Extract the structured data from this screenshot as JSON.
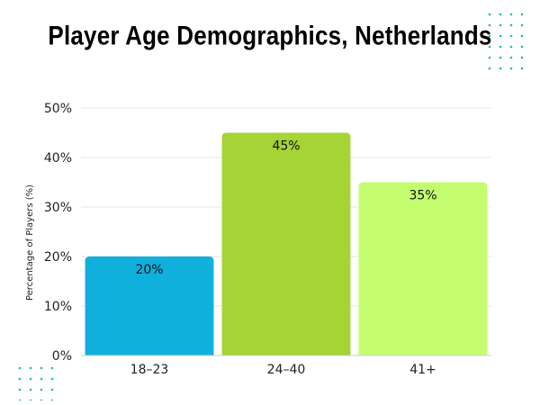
{
  "chart_data": {
    "type": "bar",
    "title": "Player Age Demographics, Netherlands",
    "xlabel": "",
    "ylabel": "Percentage of Players (%)",
    "categories": [
      "18–23",
      "24–40",
      "41+"
    ],
    "values": [
      20,
      45,
      35
    ],
    "data_labels": [
      "20%",
      "45%",
      "35%"
    ],
    "y_ticks": [
      "0%",
      "10%",
      "20%",
      "30%",
      "40%",
      "50%"
    ],
    "ylim": [
      0,
      50
    ],
    "grid": true,
    "legend": "none",
    "colors": [
      "#0fb0dc",
      "#a6d336",
      "#c3fd6f"
    ]
  },
  "decor": {
    "dots_color": "#2bb8a3"
  }
}
